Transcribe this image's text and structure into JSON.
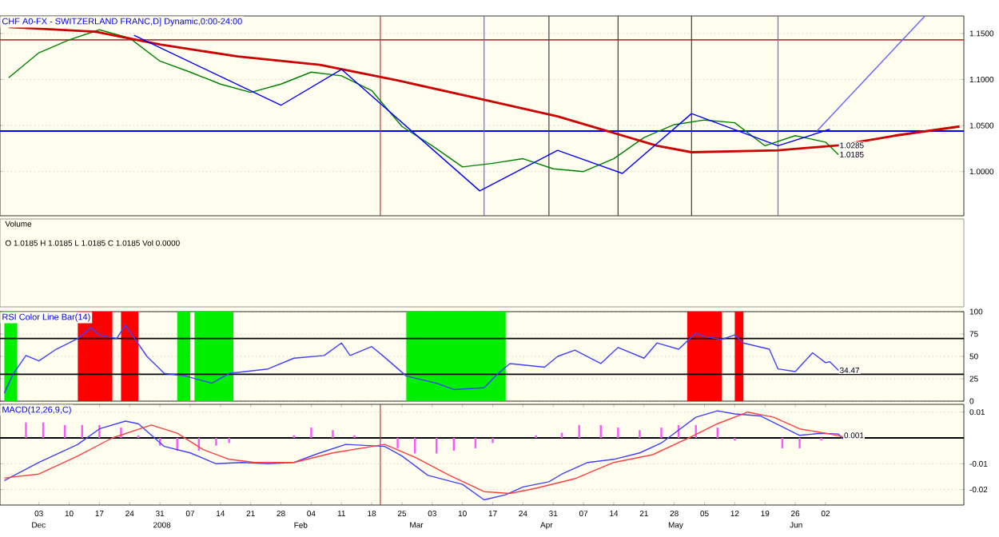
{
  "chart_data": [
    {
      "type": "line",
      "title": "CHF A0-FX - SWITZERLAND FRANC,D] Dynamic,0:00-24:00",
      "xlim": [
        "2007-11-24",
        "2008-07-04"
      ],
      "ylim": [
        0.952,
        1.169
      ],
      "yticks": [
        {
          "value": 1.0,
          "label": "1.0000"
        },
        {
          "value": 1.05,
          "label": "1.0500"
        },
        {
          "value": 1.1,
          "label": "1.1000"
        },
        {
          "value": 1.15,
          "label": "1.1500"
        }
      ],
      "tick_labels": "y",
      "grid": "y",
      "series": [
        {
          "color": "#008000",
          "x": [
            "2007-11-26",
            "2007-12-03",
            "2007-12-10",
            "2007-12-17",
            "2007-12-24",
            "2007-12-31",
            "2008-01-07",
            "2008-01-14",
            "2008-01-21",
            "2008-01-28",
            "2008-02-04",
            "2008-02-11",
            "2008-02-18",
            "2008-02-25",
            "2008-03-03",
            "2008-03-10",
            "2008-03-17",
            "2008-03-24",
            "2008-03-31",
            "2008-04-07",
            "2008-04-14",
            "2008-04-21",
            "2008-04-28",
            "2008-05-05",
            "2008-05-12",
            "2008-05-19",
            "2008-05-26",
            "2008-06-02",
            "2008-06-05"
          ],
          "values": [
            1.102,
            1.129,
            1.143,
            1.154,
            1.145,
            1.12,
            1.108,
            1.095,
            1.086,
            1.095,
            1.108,
            1.104,
            1.088,
            1.049,
            1.028,
            1.005,
            1.009,
            1.014,
            1.003,
            1.0,
            1.014,
            1.037,
            1.051,
            1.056,
            1.053,
            1.028,
            1.039,
            1.032,
            1.0185
          ]
        },
        {
          "color": "#cc0000",
          "x": [
            "2007-11-26",
            "2007-12-16",
            "2007-12-31",
            "2008-01-18",
            "2008-02-06",
            "2008-02-24",
            "2008-03-14",
            "2008-04-01",
            "2008-04-24",
            "2008-05-02",
            "2008-05-22",
            "2008-06-05",
            "2008-06-18",
            "2008-07-03"
          ],
          "values": [
            1.157,
            1.152,
            1.138,
            1.125,
            1.116,
            1.099,
            1.079,
            1.06,
            1.028,
            1.021,
            1.023,
            1.0285,
            1.039,
            1.049
          ]
        },
        {
          "color": "#0000ff",
          "x": [
            "2007-12-25",
            "2008-01-28",
            "2008-02-11",
            "2008-03-14",
            "2008-04-01",
            "2008-04-16",
            "2008-05-02",
            "2008-05-22",
            "2008-06-03"
          ],
          "values": [
            1.148,
            1.072,
            1.111,
            0.979,
            1.023,
            0.998,
            1.063,
            1.028,
            1.046
          ]
        },
        {
          "color": "#6666ff",
          "x": [
            "2008-05-31",
            "2008-06-25"
          ],
          "values": [
            1.044,
            1.169
          ]
        }
      ],
      "ref_lines": [
        {
          "axis": "y",
          "value": 1.044,
          "color": "#0000ff"
        },
        {
          "axis": "y",
          "value": 1.143,
          "color": "#b04040"
        },
        {
          "axis": "x",
          "value": "2008-02-20",
          "color": "#b04040"
        },
        {
          "axis": "x",
          "value": "2008-03-15",
          "color": "#6666ff"
        },
        {
          "axis": "x",
          "value": "2008-03-30",
          "color": "#404040"
        },
        {
          "axis": "x",
          "value": "2008-04-15",
          "color": "#404040"
        },
        {
          "axis": "x",
          "value": "2008-05-02",
          "color": "#404040"
        },
        {
          "axis": "x",
          "value": "2008-05-22",
          "color": "#6666ff"
        }
      ],
      "annotations": [
        {
          "text": "1.0285",
          "x": "2008-06-05",
          "y": 1.0285
        },
        {
          "text": "1.0185",
          "x": "2008-06-05",
          "y": 1.0185
        },
        "Volume",
        "O 1.0185 H 1.0185 L 1.0185 C 1.0185 Vol 0.0000"
      ]
    },
    {
      "type": "line",
      "title": "RSI Color Line Bar(14)",
      "xlim": [
        "2007-11-24",
        "2008-07-04"
      ],
      "ylim": [
        0,
        100
      ],
      "yticks": [
        0,
        25,
        50,
        75,
        100
      ],
      "tick_labels": "y",
      "grid": "y",
      "series": [
        {
          "color": "#4040ff",
          "x": [
            "2007-11-25",
            "2007-11-27",
            "2007-11-30",
            "2007-12-03",
            "2007-12-07",
            "2007-12-12",
            "2007-12-15",
            "2007-12-17",
            "2007-12-21",
            "2007-12-23",
            "2007-12-28",
            "2008-01-01",
            "2008-01-06",
            "2008-01-12",
            "2008-01-16",
            "2008-01-25",
            "2008-01-31",
            "2008-02-07",
            "2008-02-11",
            "2008-02-13",
            "2008-02-18",
            "2008-02-21",
            "2008-02-26",
            "2008-03-04",
            "2008-03-08",
            "2008-03-15",
            "2008-03-18",
            "2008-03-21",
            "2008-03-29",
            "2008-04-01",
            "2008-04-05",
            "2008-04-11",
            "2008-04-15",
            "2008-04-21",
            "2008-04-24",
            "2008-04-29",
            "2008-05-03",
            "2008-05-05",
            "2008-05-09",
            "2008-05-12",
            "2008-05-14",
            "2008-05-20",
            "2008-05-22",
            "2008-05-26",
            "2008-05-30",
            "2008-06-02",
            "2008-06-03",
            "2008-06-05"
          ],
          "values": [
            9,
            30,
            51,
            45,
            58,
            70,
            82,
            74,
            70,
            85,
            50,
            31,
            28,
            20,
            31,
            36,
            48,
            51,
            65,
            51,
            61,
            49,
            28,
            20,
            13,
            15,
            30,
            42,
            38,
            50,
            57,
            42,
            60,
            48,
            65,
            58,
            76,
            72,
            69,
            74,
            65,
            58,
            36,
            33,
            54,
            43,
            44,
            34.47
          ]
        }
      ],
      "ref_lines": [
        {
          "axis": "y",
          "value": 70,
          "color": "#000000"
        },
        {
          "axis": "y",
          "value": 30,
          "color": "#000000"
        }
      ],
      "bands": [
        {
          "axis": "x",
          "from": "2007-11-25",
          "to": "2007-11-28",
          "color": "#00ee00"
        },
        {
          "axis": "x",
          "from": "2007-12-12",
          "to": "2007-12-20",
          "color": "#ff0000"
        },
        {
          "axis": "x",
          "from": "2007-12-22",
          "to": "2007-12-26",
          "color": "#ff0000"
        },
        {
          "axis": "x",
          "from": "2008-01-04",
          "to": "2008-01-07",
          "color": "#00ee00"
        },
        {
          "axis": "x",
          "from": "2008-01-08",
          "to": "2008-01-17",
          "color": "#00ee00"
        },
        {
          "axis": "x",
          "from": "2008-02-26",
          "to": "2008-03-20",
          "color": "#00ee00"
        },
        {
          "axis": "x",
          "from": "2008-05-01",
          "to": "2008-05-09",
          "color": "#ff0000"
        },
        {
          "axis": "x",
          "from": "2008-05-12",
          "to": "2008-05-14",
          "color": "#ff0000"
        }
      ],
      "annotations": [
        {
          "text": "34.47",
          "x": "2008-06-05",
          "y": 34.47
        }
      ]
    },
    {
      "type": "line",
      "title": "MACD(12,26,9,C)",
      "xlim": [
        "2007-11-24",
        "2008-07-04"
      ],
      "ylim": [
        -0.026,
        0.013
      ],
      "yticks": [
        -0.02,
        -0.01,
        {
          "value": 0,
          "label": null
        },
        0.01
      ],
      "grid": "y",
      "xticks": [
        {
          "value": "2007-12-03",
          "label": "03"
        },
        {
          "value": "2007-12-10",
          "label": "10"
        },
        {
          "value": "2007-12-17",
          "label": "17"
        },
        {
          "value": "2007-12-24",
          "label": "24"
        },
        {
          "value": "2007-12-31",
          "label": "31"
        },
        {
          "value": "2008-01-07",
          "label": "07"
        },
        {
          "value": "2008-01-14",
          "label": "14"
        },
        {
          "value": "2008-01-21",
          "label": "21"
        },
        {
          "value": "2008-01-28",
          "label": "28"
        },
        {
          "value": "2008-02-04",
          "label": "04"
        },
        {
          "value": "2008-02-11",
          "label": "11"
        },
        {
          "value": "2008-02-18",
          "label": "18"
        },
        {
          "value": "2008-02-25",
          "label": "25"
        },
        {
          "value": "2008-03-03",
          "label": "03"
        },
        {
          "value": "2008-03-10",
          "label": "10"
        },
        {
          "value": "2008-03-17",
          "label": "17"
        },
        {
          "value": "2008-03-24",
          "label": "24"
        },
        {
          "value": "2008-03-31",
          "label": "31"
        },
        {
          "value": "2008-04-07",
          "label": "07"
        },
        {
          "value": "2008-04-14",
          "label": "14"
        },
        {
          "value": "2008-04-21",
          "label": "21"
        },
        {
          "value": "2008-04-28",
          "label": "28"
        },
        {
          "value": "2008-05-05",
          "label": "05"
        },
        {
          "value": "2008-05-12",
          "label": "12"
        },
        {
          "value": "2008-05-19",
          "label": "19"
        },
        {
          "value": "2008-05-26",
          "label": "26"
        },
        {
          "value": "2008-06-02",
          "label": "02"
        }
      ],
      "series": [
        {
          "type": "bar",
          "color": "#ff55ff",
          "x": [
            "2007-11-30",
            "2007-12-04",
            "2007-12-09",
            "2007-12-13",
            "2007-12-17",
            "2007-12-22",
            "2007-12-26",
            "2007-12-31",
            "2008-01-04",
            "2008-01-09",
            "2008-01-13",
            "2008-01-16",
            "2008-01-31",
            "2008-02-04",
            "2008-02-09",
            "2008-02-14",
            "2008-02-24",
            "2008-02-28",
            "2008-03-04",
            "2008-03-08",
            "2008-03-13",
            "2008-03-17",
            "2008-03-27",
            "2008-04-02",
            "2008-04-06",
            "2008-04-11",
            "2008-04-15",
            "2008-04-20",
            "2008-04-25",
            "2008-04-29",
            "2008-05-03",
            "2008-05-08",
            "2008-05-12",
            "2008-05-23",
            "2008-05-27",
            "2008-06-01"
          ],
          "values": [
            0.006,
            0.006,
            0.005,
            0.005,
            0.005,
            0.004,
            0.001,
            -0.003,
            -0.005,
            -0.005,
            -0.003,
            -0.002,
            0.001,
            0.004,
            0.003,
            0.001,
            -0.004,
            -0.006,
            -0.006,
            -0.005,
            -0.004,
            -0.002,
            0.001,
            0.002,
            0.005,
            0.005,
            0.004,
            0.003,
            0.004,
            0.005,
            0.005,
            0.004,
            -0.001,
            -0.004,
            -0.004,
            -0.001
          ]
        },
        {
          "color": "#4040ff",
          "x": [
            "2007-11-25",
            "2007-12-03",
            "2007-12-12",
            "2007-12-17",
            "2007-12-23",
            "2007-12-26",
            "2008-01-01",
            "2008-01-07",
            "2008-01-13",
            "2008-01-19",
            "2008-01-25",
            "2008-01-31",
            "2008-02-06",
            "2008-02-12",
            "2008-02-21",
            "2008-02-25",
            "2008-03-02",
            "2008-03-10",
            "2008-03-15",
            "2008-03-20",
            "2008-03-24",
            "2008-03-30",
            "2008-04-02",
            "2008-04-08",
            "2008-04-14",
            "2008-04-20",
            "2008-04-25",
            "2008-04-29",
            "2008-05-03",
            "2008-05-08",
            "2008-05-12",
            "2008-05-18",
            "2008-05-23",
            "2008-05-27",
            "2008-06-01",
            "2008-06-05",
            "2008-06-06"
          ],
          "values": [
            -0.0165,
            -0.0095,
            -0.0025,
            0.0035,
            0.0065,
            0.0055,
            -0.0033,
            -0.0058,
            -0.01,
            -0.0095,
            -0.01,
            -0.0095,
            -0.0058,
            -0.0025,
            -0.0033,
            -0.007,
            -0.0145,
            -0.018,
            -0.024,
            -0.022,
            -0.019,
            -0.017,
            -0.014,
            -0.0095,
            -0.0083,
            -0.0058,
            -0.002,
            0.003,
            0.008,
            0.0105,
            0.0093,
            0.0085,
            0.0043,
            0.001,
            0.0018,
            0.0015,
            -0.0003
          ]
        },
        {
          "color": "#ff4040",
          "x": [
            "2007-11-25",
            "2007-12-03",
            "2007-12-12",
            "2007-12-20",
            "2007-12-29",
            "2008-01-04",
            "2008-01-10",
            "2008-01-16",
            "2008-01-22",
            "2008-01-31",
            "2008-02-09",
            "2008-02-21",
            "2008-02-28",
            "2008-03-07",
            "2008-03-15",
            "2008-03-21",
            "2008-03-27",
            "2008-04-05",
            "2008-04-14",
            "2008-04-23",
            "2008-05-02",
            "2008-05-08",
            "2008-05-15",
            "2008-05-21",
            "2008-05-27",
            "2008-06-02",
            "2008-06-06"
          ],
          "values": [
            -0.0155,
            -0.014,
            -0.007,
            0,
            0.005,
            0.0018,
            -0.0045,
            -0.0083,
            -0.0095,
            -0.0095,
            -0.0058,
            -0.0025,
            -0.0075,
            -0.0145,
            -0.0208,
            -0.0215,
            -0.0195,
            -0.0158,
            -0.0095,
            -0.0065,
            0.0005,
            0.0055,
            0.01,
            0.008,
            0.0035,
            0.0018,
            0.0005
          ]
        }
      ],
      "ref_lines": [
        {
          "axis": "y",
          "value": 0,
          "color": "#000000"
        },
        {
          "axis": "x",
          "value": "2008-02-20",
          "color": "#b04040"
        }
      ],
      "annotations": [
        {
          "text": "0.001",
          "x": "2008-06-06",
          "y": 0.001
        },
        "Dec",
        "2008",
        "Feb",
        "Mar",
        "Apr",
        "May",
        "Jun"
      ]
    }
  ]
}
